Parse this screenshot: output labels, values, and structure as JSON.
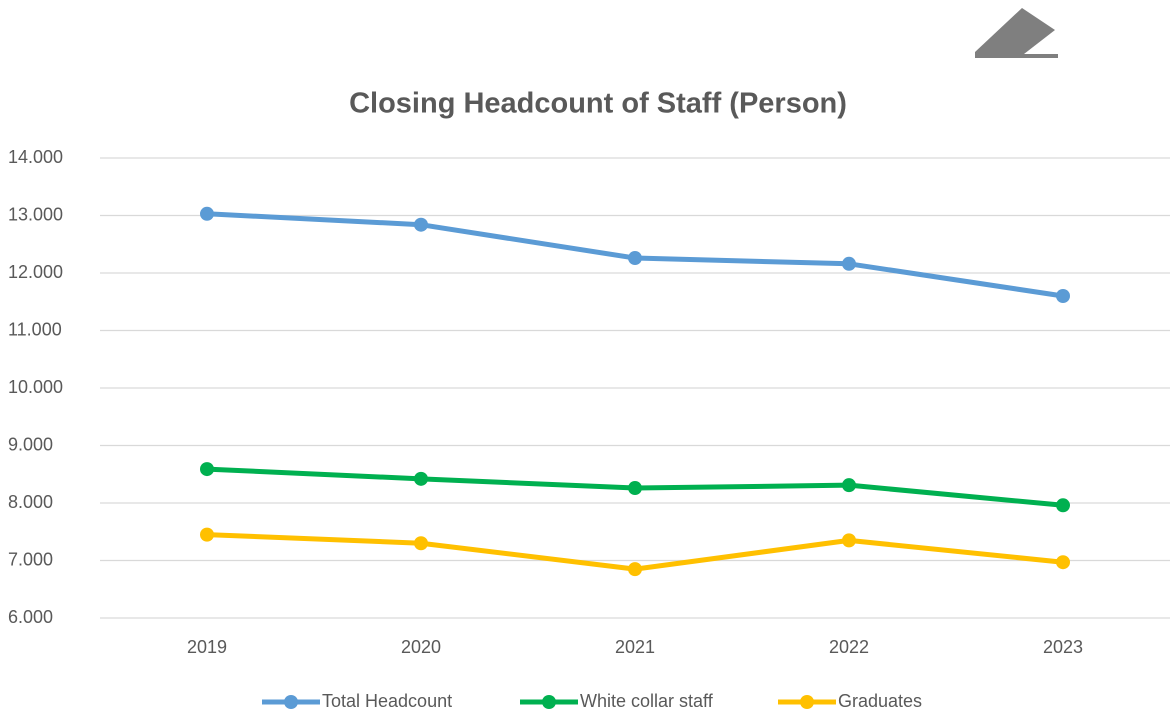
{
  "chart_data": {
    "type": "line",
    "title": "Closing Headcount of Staff (Person)",
    "categories": [
      "2019",
      "2020",
      "2021",
      "2022",
      "2023"
    ],
    "series": [
      {
        "name": "Total Headcount",
        "color": "#5b9bd5",
        "values": [
          13030,
          12840,
          12260,
          12160,
          11600
        ]
      },
      {
        "name": "White collar staff",
        "color": "#00b050",
        "values": [
          8590,
          8420,
          8260,
          8310,
          7960
        ]
      },
      {
        "name": "Graduates",
        "color": "#ffc000",
        "values": [
          7450,
          7300,
          6850,
          7350,
          6970
        ]
      }
    ],
    "ylim": [
      6000,
      14000
    ],
    "yticks": [
      {
        "value": 6000,
        "label": "6.000"
      },
      {
        "value": 7000,
        "label": "7.000"
      },
      {
        "value": 8000,
        "label": "8.000"
      },
      {
        "value": 9000,
        "label": "9.000"
      },
      {
        "value": 10000,
        "label": "10.000"
      },
      {
        "value": 11000,
        "label": "11.000"
      },
      {
        "value": 12000,
        "label": "12.000"
      },
      {
        "value": 13000,
        "label": "13.000"
      },
      {
        "value": 14000,
        "label": "14.000"
      }
    ],
    "grid": true,
    "legend": "bottom"
  }
}
